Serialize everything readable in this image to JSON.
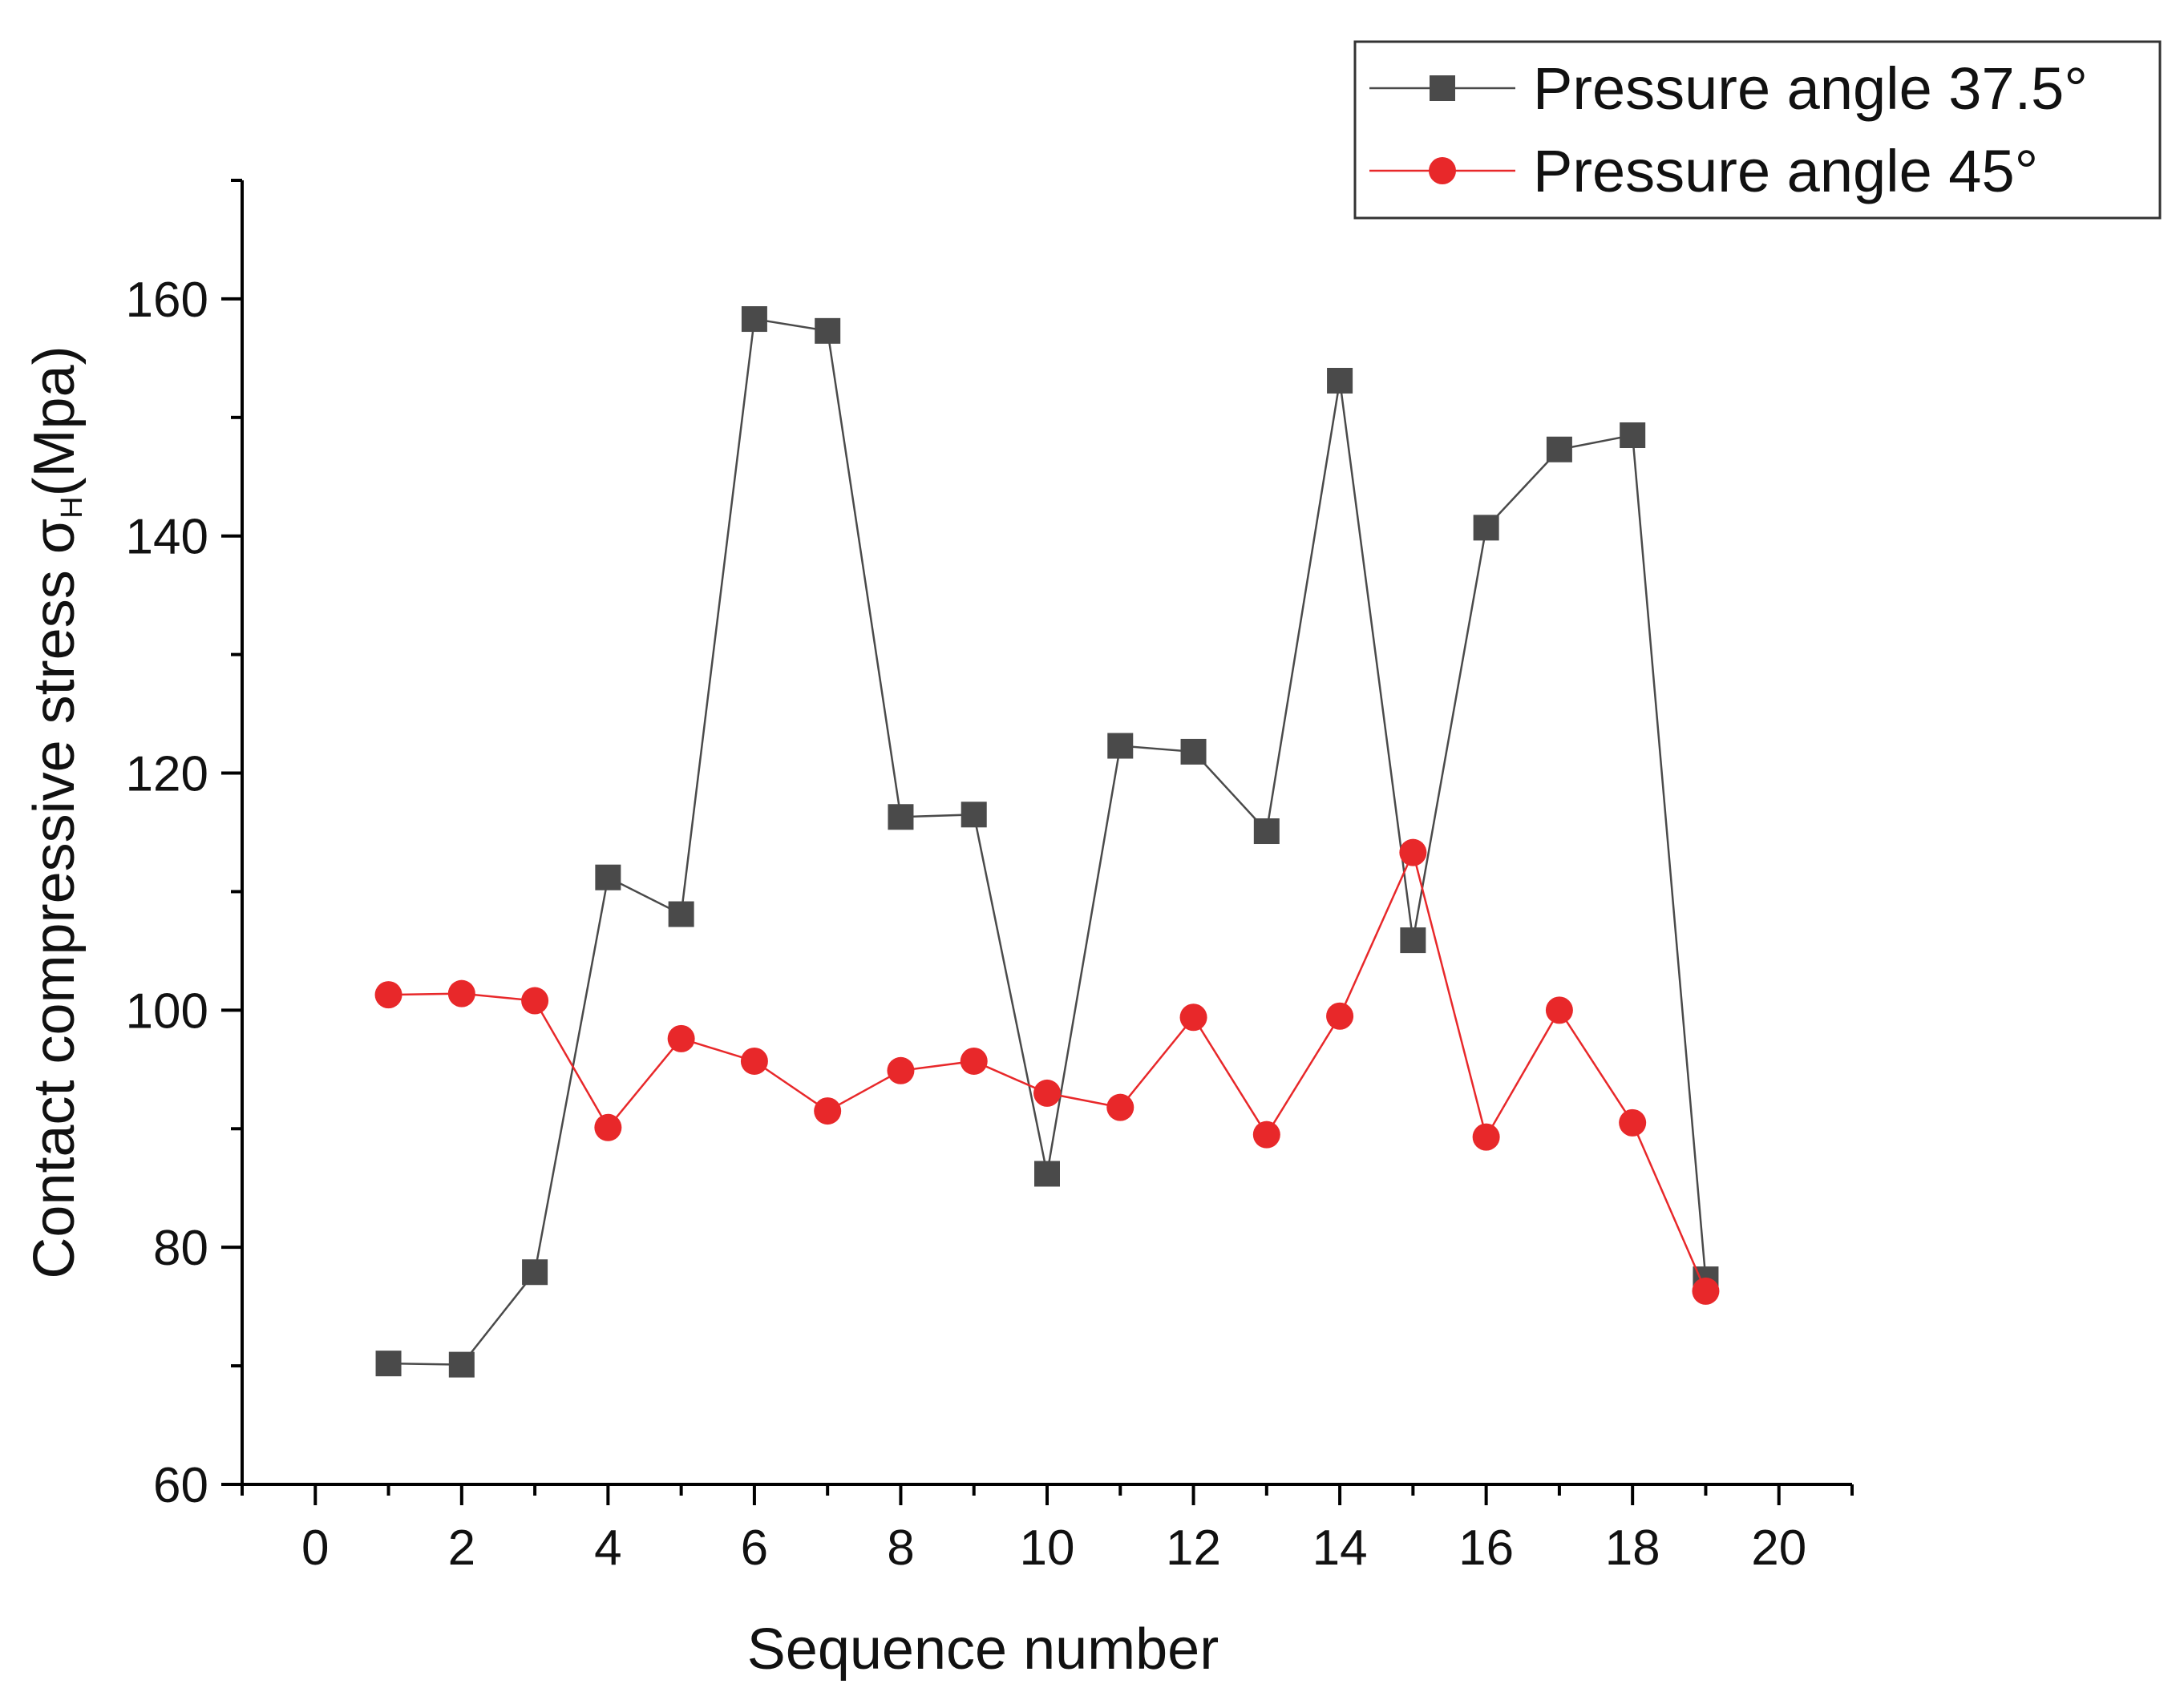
{
  "chart_data": {
    "type": "line",
    "title": "",
    "xlabel": "Sequence number",
    "ylabel_main": "Contact compressive stress σ",
    "ylabel_sub": "H",
    "ylabel_unit": "(Mpa)",
    "xlim": [
      -1,
      21
    ],
    "ylim": [
      60,
      170
    ],
    "xticks": [
      0,
      2,
      4,
      6,
      8,
      10,
      12,
      14,
      16,
      18,
      20
    ],
    "yticks": [
      60,
      80,
      100,
      120,
      140,
      160
    ],
    "x": [
      1,
      2,
      3,
      4,
      5,
      6,
      7,
      8,
      9,
      10,
      11,
      12,
      13,
      14,
      15,
      16,
      17,
      18,
      19
    ],
    "legend_position": "top-right",
    "series": [
      {
        "name": "Pressure angle 37.5°",
        "color": "#4a4a4a",
        "marker": "square",
        "values": [
          70.2,
          70.1,
          77.9,
          111.2,
          108.1,
          158.3,
          157.3,
          116.3,
          116.5,
          86.2,
          122.3,
          121.8,
          115.1,
          153.1,
          105.9,
          140.7,
          147.3,
          148.5,
          77.3
        ]
      },
      {
        "name": "Pressure angle 45°",
        "color": "#e8282a",
        "marker": "circle",
        "values": [
          101.3,
          101.4,
          100.8,
          90.1,
          97.6,
          95.7,
          91.5,
          94.9,
          95.7,
          93.0,
          91.8,
          99.4,
          89.5,
          99.5,
          113.3,
          89.3,
          100.0,
          90.5,
          76.3
        ]
      }
    ]
  }
}
